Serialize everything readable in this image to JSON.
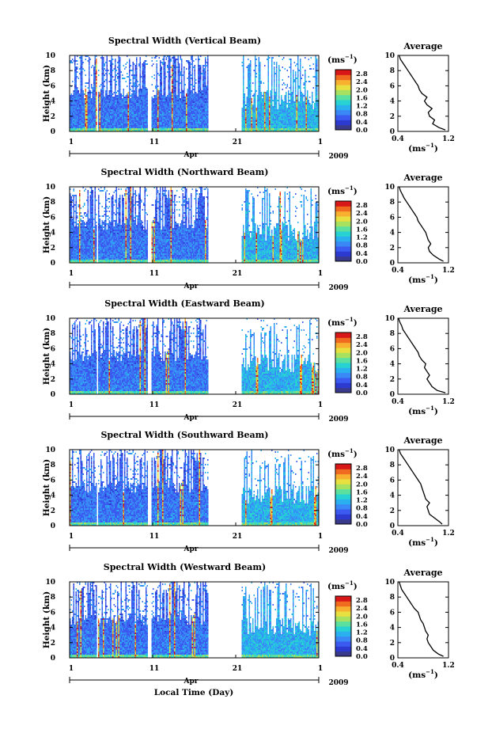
{
  "figure": {
    "xlabel": "Local Time (Day)",
    "month_label": "Apr",
    "year_label": "2009"
  },
  "colorbar": {
    "unit_prefix": "(ms",
    "unit_exp": "−1",
    "unit_suffix": ")",
    "ticks": [
      "0.0",
      "0.4",
      "0.8",
      "1.2",
      "1.6",
      "2.0",
      "2.4",
      "2.8"
    ],
    "range": [
      0.0,
      3.0
    ],
    "colors": [
      "#3a3a8c",
      "#2c3ad0",
      "#3a5af0",
      "#3a88f5",
      "#2ab0ee",
      "#28d2d2",
      "#5ce0a0",
      "#a8e060",
      "#e8e040",
      "#f8b030",
      "#f06a20",
      "#d81818"
    ]
  },
  "average_panel": {
    "title": "Average",
    "xlabel_prefix": "(ms",
    "xlabel_exp": "−1",
    "xlabel_suffix": ")"
  },
  "chart_data": [
    {
      "type": "heatmap",
      "title": "Spectral Width (Vertical Beam)",
      "ylabel": "Height (km)",
      "xlabel": "",
      "x_range": [
        1,
        31
      ],
      "x_ticks": [
        "1",
        "11",
        "21",
        "1"
      ],
      "ylim": [
        0,
        10
      ],
      "y_ticks": [
        0,
        2,
        4,
        6,
        8,
        10
      ],
      "data_gaps_days": [
        [
          4.2,
          4.4
        ],
        [
          10.4,
          10.8
        ],
        [
          17.6,
          21.6
        ]
      ],
      "colorbar_ticks": [
        "0.0",
        "0.4",
        "0.8",
        "1.2",
        "1.6",
        "2.0",
        "2.4",
        "2.8"
      ],
      "average_profile": {
        "xlim": [
          0.4,
          1.2
        ],
        "x_ticks": [
          "0.4",
          "1.2"
        ],
        "height_km": [
          0.2,
          0.5,
          1.0,
          1.5,
          2.0,
          2.5,
          3.0,
          3.5,
          4.0,
          4.5,
          5.0,
          5.5,
          6.0,
          6.5,
          7.0,
          7.5,
          8.0,
          8.5,
          9.0,
          9.5,
          10.0
        ],
        "width_ms": [
          1.15,
          1.05,
          0.95,
          0.98,
          0.9,
          0.88,
          0.94,
          0.86,
          0.82,
          0.86,
          0.78,
          0.74,
          0.72,
          0.68,
          0.64,
          0.6,
          0.56,
          0.52,
          0.48,
          0.44,
          0.42
        ]
      }
    },
    {
      "type": "heatmap",
      "title": "Spectral Width (Northward Beam)",
      "ylabel": "Height (km)",
      "xlabel": "",
      "x_range": [
        1,
        31
      ],
      "x_ticks": [
        "1",
        "11",
        "21",
        "1"
      ],
      "ylim": [
        0,
        10
      ],
      "y_ticks": [
        0,
        2,
        4,
        6,
        8,
        10
      ],
      "data_gaps_days": [
        [
          4.2,
          4.4
        ],
        [
          10.4,
          10.8
        ],
        [
          17.6,
          21.6
        ]
      ],
      "colorbar_ticks": [
        "0.0",
        "0.4",
        "0.8",
        "1.2",
        "1.6",
        "2.0",
        "2.4",
        "2.8"
      ],
      "average_profile": {
        "xlim": [
          0.4,
          1.2
        ],
        "x_ticks": [
          "0.4",
          "1.2"
        ],
        "height_km": [
          0.2,
          0.5,
          1.0,
          1.5,
          2.0,
          2.5,
          3.0,
          3.5,
          4.0,
          4.5,
          5.0,
          5.5,
          6.0,
          6.5,
          7.0,
          7.5,
          8.0,
          8.5,
          9.0,
          9.5,
          10.0
        ],
        "width_ms": [
          1.12,
          1.05,
          0.96,
          0.9,
          0.88,
          0.92,
          0.88,
          0.86,
          0.84,
          0.8,
          0.76,
          0.72,
          0.7,
          0.66,
          0.62,
          0.58,
          0.54,
          0.5,
          0.47,
          0.44,
          0.42
        ]
      }
    },
    {
      "type": "heatmap",
      "title": "Spectral Width (Eastward Beam)",
      "ylabel": "Height (km)",
      "xlabel": "",
      "x_range": [
        1,
        31
      ],
      "x_ticks": [
        "1",
        "11",
        "21",
        "1"
      ],
      "ylim": [
        0,
        10
      ],
      "y_ticks": [
        0,
        2,
        4,
        6,
        8,
        10
      ],
      "data_gaps_days": [
        [
          4.2,
          4.4
        ],
        [
          10.4,
          10.8
        ],
        [
          17.6,
          21.6
        ]
      ],
      "colorbar_ticks": [
        "0.0",
        "0.4",
        "0.8",
        "1.2",
        "1.6",
        "2.0",
        "2.4",
        "2.8"
      ],
      "average_profile": {
        "xlim": [
          0.4,
          1.2
        ],
        "x_ticks": [
          "0.4",
          "1.2"
        ],
        "height_km": [
          0.2,
          0.5,
          1.0,
          1.5,
          2.0,
          2.5,
          3.0,
          3.5,
          4.0,
          4.5,
          5.0,
          5.5,
          6.0,
          6.5,
          7.0,
          7.5,
          8.0,
          8.5,
          9.0,
          9.5,
          10.0
        ],
        "width_ms": [
          1.15,
          1.02,
          0.94,
          0.9,
          0.86,
          0.9,
          0.86,
          0.82,
          0.84,
          0.78,
          0.74,
          0.72,
          0.68,
          0.64,
          0.6,
          0.56,
          0.52,
          0.48,
          0.46,
          0.43,
          0.41
        ]
      }
    },
    {
      "type": "heatmap",
      "title": "Spectral Width (Southward Beam)",
      "ylabel": "Height (km)",
      "xlabel": "",
      "x_range": [
        1,
        31
      ],
      "x_ticks": [
        "1",
        "11",
        "21",
        "1"
      ],
      "ylim": [
        0,
        10
      ],
      "y_ticks": [
        0,
        2,
        4,
        6,
        8,
        10
      ],
      "data_gaps_days": [
        [
          4.2,
          4.4
        ],
        [
          10.4,
          10.8
        ],
        [
          17.6,
          21.6
        ]
      ],
      "colorbar_ticks": [
        "0.0",
        "0.4",
        "0.8",
        "1.2",
        "1.6",
        "2.0",
        "2.4",
        "2.8"
      ],
      "average_profile": {
        "xlim": [
          0.4,
          1.2
        ],
        "x_ticks": [
          "0.4",
          "1.2"
        ],
        "height_km": [
          0.2,
          0.5,
          1.0,
          1.5,
          2.0,
          2.5,
          3.0,
          3.5,
          4.0,
          4.5,
          5.0,
          5.5,
          6.0,
          6.5,
          7.0,
          7.5,
          8.0,
          8.5,
          9.0,
          9.5,
          10.0
        ],
        "width_ms": [
          1.1,
          1.06,
          0.98,
          0.9,
          0.88,
          0.86,
          0.9,
          0.84,
          0.82,
          0.8,
          0.78,
          0.76,
          0.72,
          0.68,
          0.64,
          0.6,
          0.56,
          0.52,
          0.48,
          0.44,
          0.42
        ]
      }
    },
    {
      "type": "heatmap",
      "title": "Spectral Width (Westward Beam)",
      "ylabel": "Height (km)",
      "xlabel": "Local Time (Day)",
      "x_range": [
        1,
        31
      ],
      "x_ticks": [
        "1",
        "11",
        "21",
        "1"
      ],
      "ylim": [
        0,
        10
      ],
      "y_ticks": [
        0,
        2,
        4,
        6,
        8,
        10
      ],
      "data_gaps_days": [
        [
          4.2,
          4.4
        ],
        [
          10.4,
          10.8
        ],
        [
          17.6,
          21.6
        ]
      ],
      "colorbar_ticks": [
        "0.0",
        "0.4",
        "0.8",
        "1.2",
        "1.6",
        "2.0",
        "2.4",
        "2.8"
      ],
      "average_profile": {
        "xlim": [
          0.4,
          1.2
        ],
        "x_ticks": [
          "0.4",
          "1.2"
        ],
        "height_km": [
          0.2,
          0.5,
          1.0,
          1.5,
          2.0,
          2.5,
          3.0,
          3.5,
          4.0,
          4.5,
          5.0,
          5.5,
          6.0,
          6.5,
          7.0,
          7.5,
          8.0,
          8.5,
          9.0,
          9.5,
          10.0
        ],
        "width_ms": [
          1.12,
          1.04,
          0.96,
          0.92,
          0.88,
          0.86,
          0.88,
          0.84,
          0.82,
          0.8,
          0.76,
          0.74,
          0.72,
          0.66,
          0.62,
          0.58,
          0.54,
          0.5,
          0.46,
          0.44,
          0.42
        ]
      }
    }
  ]
}
